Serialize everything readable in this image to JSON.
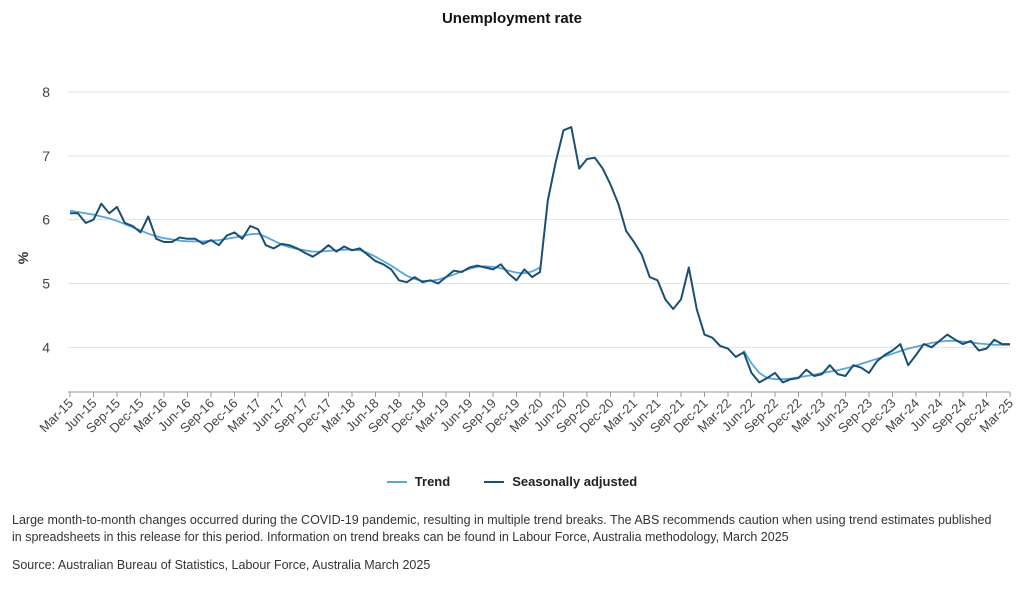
{
  "chart_data": {
    "type": "line",
    "title": "Unemployment rate",
    "ylabel": "%",
    "xlabel": "",
    "ylim": [
      3.3,
      8.0
    ],
    "yticks": [
      4,
      5,
      6,
      7,
      8
    ],
    "grid": "horizontal",
    "legend_position": "bottom",
    "x_tick_labels": [
      "Mar-15",
      "Jun-15",
      "Sep-15",
      "Dec-15",
      "Mar-16",
      "Jun-16",
      "Sep-16",
      "Dec-16",
      "Mar-17",
      "Jun-17",
      "Sep-17",
      "Dec-17",
      "Mar-18",
      "Jun-18",
      "Sep-18",
      "Dec-18",
      "Mar-19",
      "Jun-19",
      "Sep-19",
      "Dec-19",
      "Mar-20",
      "Jun-20",
      "Sep-20",
      "Dec-20",
      "Mar-21",
      "Jun-21",
      "Sep-21",
      "Dec-21",
      "Mar-22",
      "Jun-22",
      "Sep-22",
      "Dec-22",
      "Mar-23",
      "Jun-23",
      "Sep-23",
      "Dec-23",
      "Mar-24",
      "Jun-24",
      "Sep-24",
      "Dec-24",
      "Mar-25"
    ],
    "x_start": "Mar-15",
    "x_end": "Mar-25",
    "series": [
      {
        "name": "Seasonally adjusted",
        "color": "#1b4f72",
        "values": [
          6.1,
          6.1,
          5.95,
          6.0,
          6.25,
          6.1,
          6.2,
          5.95,
          5.9,
          5.8,
          6.05,
          5.7,
          5.65,
          5.65,
          5.72,
          5.7,
          5.7,
          5.62,
          5.68,
          5.6,
          5.75,
          5.8,
          5.7,
          5.9,
          5.85,
          5.6,
          5.55,
          5.62,
          5.6,
          5.55,
          5.48,
          5.42,
          5.5,
          5.6,
          5.5,
          5.58,
          5.52,
          5.55,
          5.45,
          5.35,
          5.3,
          5.22,
          5.05,
          5.02,
          5.1,
          5.02,
          5.05,
          5.0,
          5.1,
          5.2,
          5.18,
          5.25,
          5.28,
          5.25,
          5.22,
          5.3,
          5.15,
          5.05,
          5.22,
          5.1,
          5.18,
          6.3,
          6.9,
          7.4,
          7.45,
          6.8,
          6.95,
          6.97,
          6.8,
          6.55,
          6.25,
          5.82,
          5.65,
          5.45,
          5.1,
          5.05,
          4.75,
          4.6,
          4.75,
          5.25,
          4.6,
          4.2,
          4.15,
          4.02,
          3.98,
          3.85,
          3.92,
          3.6,
          3.45,
          3.52,
          3.6,
          3.45,
          3.5,
          3.52,
          3.65,
          3.55,
          3.58,
          3.72,
          3.58,
          3.55,
          3.72,
          3.68,
          3.6,
          3.78,
          3.88,
          3.95,
          4.05,
          3.72,
          3.88,
          4.05,
          4.0,
          4.1,
          4.2,
          4.12,
          4.05,
          4.1,
          3.95,
          3.98,
          4.12,
          4.05,
          4.05
        ]
      },
      {
        "name": "Trend",
        "color": "#5aa6d6",
        "values": [
          6.14,
          6.12,
          6.1,
          6.08,
          6.05,
          6.02,
          5.98,
          5.93,
          5.88,
          5.83,
          5.78,
          5.74,
          5.71,
          5.69,
          5.67,
          5.66,
          5.66,
          5.66,
          5.67,
          5.68,
          5.7,
          5.72,
          5.74,
          5.77,
          5.78,
          5.73,
          5.67,
          5.61,
          5.57,
          5.54,
          5.52,
          5.5,
          5.5,
          5.51,
          5.52,
          5.53,
          5.53,
          5.52,
          5.48,
          5.42,
          5.35,
          5.28,
          5.2,
          5.12,
          5.07,
          5.04,
          5.04,
          5.06,
          5.1,
          5.14,
          5.19,
          5.23,
          5.26,
          5.27,
          5.26,
          5.24,
          5.2,
          5.17,
          5.16,
          5.19,
          5.25,
          null,
          null,
          null,
          null,
          null,
          null,
          null,
          null,
          null,
          null,
          null,
          null,
          null,
          null,
          null,
          null,
          null,
          null,
          null,
          null,
          null,
          null,
          null,
          null,
          null,
          3.95,
          3.75,
          3.6,
          3.52,
          3.5,
          3.5,
          3.51,
          3.53,
          3.55,
          3.57,
          3.6,
          3.62,
          3.64,
          3.67,
          3.7,
          3.74,
          3.78,
          3.82,
          3.86,
          3.9,
          3.94,
          3.98,
          4.01,
          4.04,
          4.07,
          4.09,
          4.1,
          4.1,
          4.09,
          4.08,
          4.06,
          4.05,
          4.04,
          4.04,
          4.04
        ]
      }
    ]
  },
  "legend": {
    "trend_label": "Trend",
    "sa_label": "Seasonally adjusted",
    "trend_color": "#5aa6d6",
    "sa_color": "#1b4f72"
  },
  "footnote": "Large month-to-month changes occurred during the COVID-19 pandemic, resulting in multiple trend breaks. The ABS recommends caution when using trend estimates published in spreadsheets in this release for this period. Information on trend breaks can be found in Labour Force, Australia methodology, March 2025",
  "source": "Source: Australian Bureau of Statistics, Labour Force, Australia March 2025"
}
